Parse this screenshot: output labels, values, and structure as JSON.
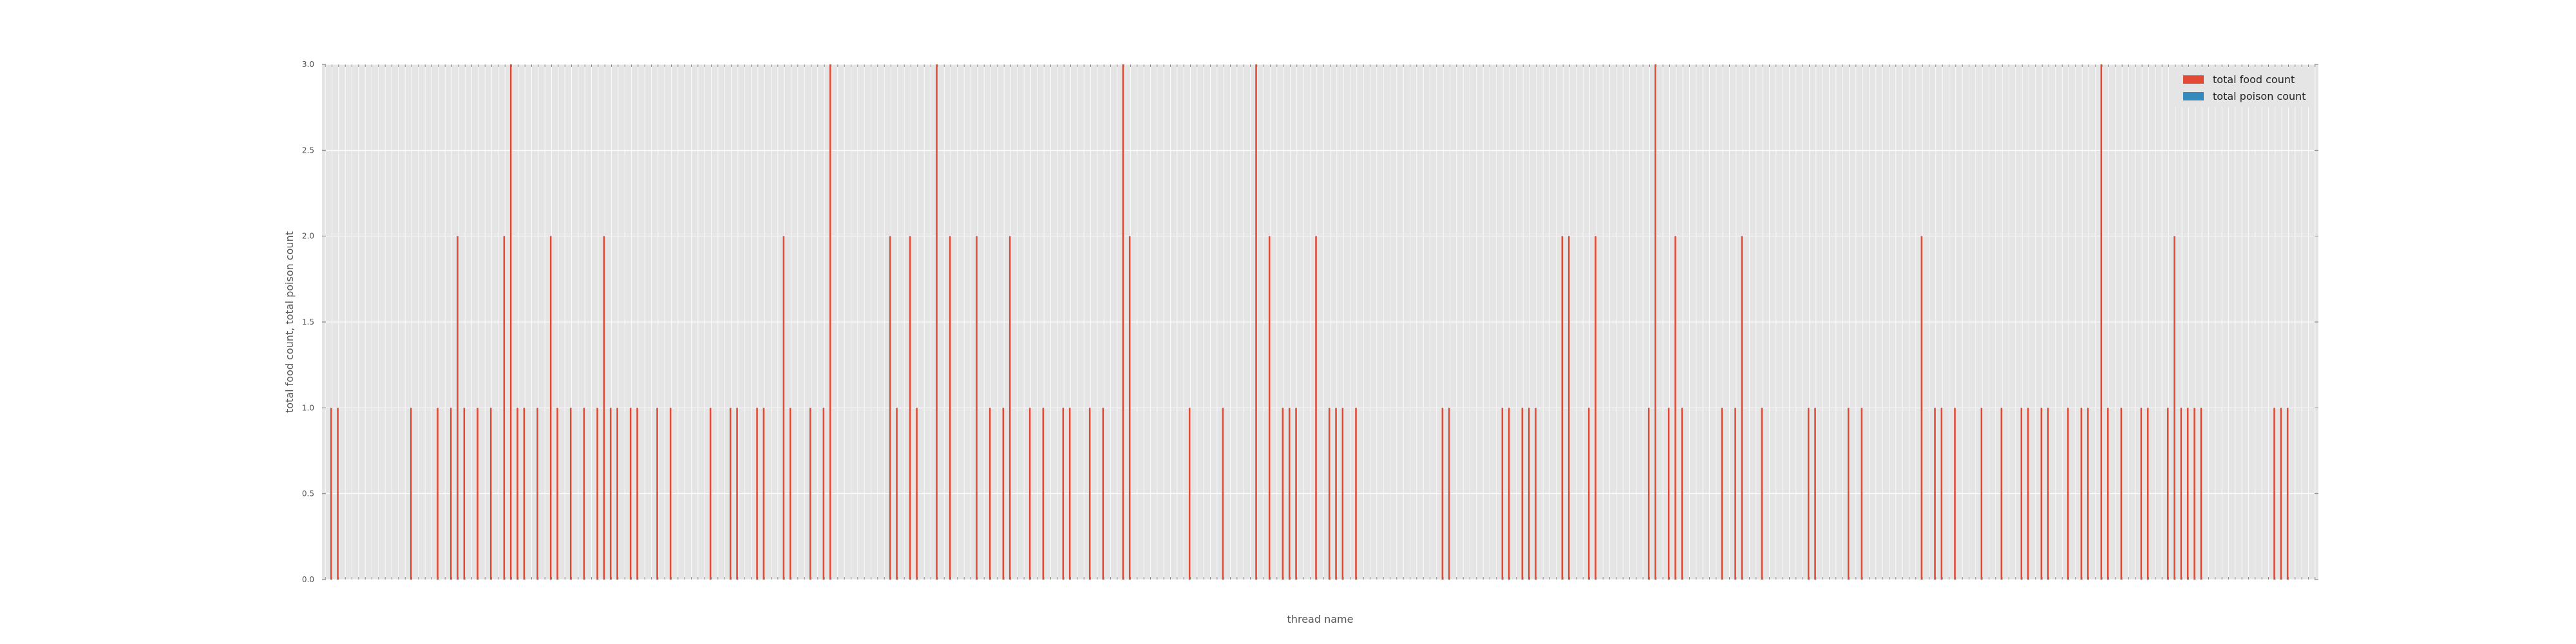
{
  "chart_data": {
    "type": "bar",
    "title": "",
    "xlabel": "thread name",
    "ylabel": "total food count, total poison count",
    "ylim": [
      0,
      3
    ],
    "y_ticks": [
      "0.0",
      "0.5",
      "1.0",
      "1.5",
      "2.0",
      "2.5",
      "3.0"
    ],
    "grid": true,
    "legend_position": "top-right",
    "category_count": 300,
    "categories": [],
    "series": [
      {
        "name": "total food count",
        "color": "#e24a33",
        "nonzero": [
          [
            1,
            1
          ],
          [
            2,
            1
          ],
          [
            13,
            1
          ],
          [
            17,
            1
          ],
          [
            19,
            1
          ],
          [
            20,
            2
          ],
          [
            21,
            1
          ],
          [
            23,
            1
          ],
          [
            25,
            1
          ],
          [
            27,
            2
          ],
          [
            28,
            3
          ],
          [
            29,
            1
          ],
          [
            30,
            1
          ],
          [
            32,
            1
          ],
          [
            34,
            2
          ],
          [
            35,
            1
          ],
          [
            37,
            1
          ],
          [
            39,
            1
          ],
          [
            41,
            1
          ],
          [
            42,
            2
          ],
          [
            43,
            1
          ],
          [
            44,
            1
          ],
          [
            46,
            1
          ],
          [
            47,
            1
          ],
          [
            50,
            1
          ],
          [
            52,
            1
          ],
          [
            58,
            1
          ],
          [
            61,
            1
          ],
          [
            62,
            1
          ],
          [
            65,
            1
          ],
          [
            66,
            1
          ],
          [
            69,
            2
          ],
          [
            70,
            1
          ],
          [
            73,
            1
          ],
          [
            75,
            1
          ],
          [
            76,
            3
          ],
          [
            85,
            2
          ],
          [
            86,
            1
          ],
          [
            88,
            2
          ],
          [
            89,
            1
          ],
          [
            92,
            3
          ],
          [
            94,
            2
          ],
          [
            98,
            2
          ],
          [
            100,
            1
          ],
          [
            102,
            1
          ],
          [
            103,
            2
          ],
          [
            106,
            1
          ],
          [
            108,
            1
          ],
          [
            111,
            1
          ],
          [
            112,
            1
          ],
          [
            115,
            1
          ],
          [
            117,
            1
          ],
          [
            120,
            3
          ],
          [
            121,
            2
          ],
          [
            130,
            1
          ],
          [
            135,
            1
          ],
          [
            140,
            3
          ],
          [
            142,
            2
          ],
          [
            144,
            1
          ],
          [
            145,
            1
          ],
          [
            146,
            1
          ],
          [
            149,
            2
          ],
          [
            151,
            1
          ],
          [
            152,
            1
          ],
          [
            153,
            1
          ],
          [
            155,
            1
          ],
          [
            168,
            1
          ],
          [
            169,
            1
          ],
          [
            177,
            1
          ],
          [
            178,
            1
          ],
          [
            180,
            1
          ],
          [
            181,
            1
          ],
          [
            182,
            1
          ],
          [
            186,
            2
          ],
          [
            187,
            2
          ],
          [
            190,
            1
          ],
          [
            191,
            2
          ],
          [
            199,
            1
          ],
          [
            200,
            3
          ],
          [
            202,
            1
          ],
          [
            203,
            2
          ],
          [
            204,
            1
          ],
          [
            210,
            1
          ],
          [
            212,
            1
          ],
          [
            213,
            2
          ],
          [
            216,
            1
          ],
          [
            223,
            1
          ],
          [
            224,
            1
          ],
          [
            229,
            1
          ],
          [
            231,
            1
          ],
          [
            240,
            2
          ],
          [
            242,
            1
          ],
          [
            243,
            1
          ],
          [
            245,
            1
          ],
          [
            249,
            1
          ],
          [
            252,
            1
          ],
          [
            255,
            1
          ],
          [
            256,
            1
          ],
          [
            258,
            1
          ],
          [
            259,
            1
          ],
          [
            262,
            1
          ],
          [
            264,
            1
          ],
          [
            265,
            1
          ],
          [
            267,
            3
          ],
          [
            268,
            1
          ],
          [
            270,
            1
          ],
          [
            273,
            1
          ],
          [
            274,
            1
          ],
          [
            277,
            1
          ],
          [
            278,
            2
          ],
          [
            279,
            1
          ],
          [
            280,
            1
          ],
          [
            281,
            1
          ],
          [
            282,
            1
          ],
          [
            293,
            1
          ],
          [
            294,
            1
          ],
          [
            295,
            1
          ]
        ]
      },
      {
        "name": "total poison count",
        "color": "#348abd",
        "nonzero": []
      }
    ]
  }
}
